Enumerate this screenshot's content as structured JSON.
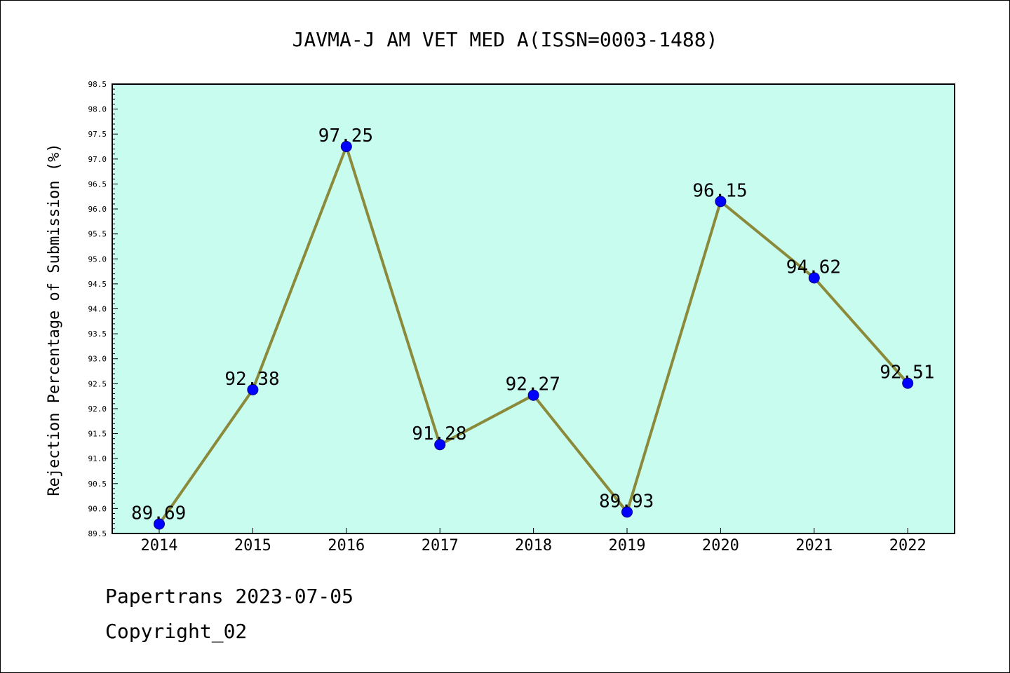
{
  "chart_data": {
    "type": "line",
    "title": "JAVMA-J AM VET MED A(ISSN=0003-1488)",
    "xlabel": "",
    "ylabel": "Rejection Percentage of Submission (%)",
    "categories": [
      "2014",
      "2015",
      "2016",
      "2017",
      "2018",
      "2019",
      "2020",
      "2021",
      "2022"
    ],
    "values": [
      89.69,
      92.38,
      97.25,
      91.28,
      92.27,
      89.93,
      96.15,
      94.62,
      92.51
    ],
    "data_labels": [
      "89.69",
      "92.38",
      "97.25",
      "91.28",
      "92.27",
      "89.93",
      "96.15",
      "94.62",
      "92.51"
    ],
    "ylim": [
      89.5,
      98.5
    ],
    "yticks": [
      "89.5",
      "90.0",
      "90.5",
      "91.0",
      "91.5",
      "92.0",
      "92.5",
      "93.0",
      "93.5",
      "94.0",
      "94.5",
      "95.0",
      "95.5",
      "96.0",
      "96.5",
      "97.0",
      "97.5",
      "98.0",
      "98.5"
    ],
    "grid": false,
    "colors": {
      "plot_background": "#c8fcee",
      "line": "#8b8a3a",
      "marker": "#0000ff",
      "axis": "#000000"
    }
  },
  "footer": {
    "line1": "Papertrans 2023-07-05",
    "line2": "Copyright_02"
  }
}
